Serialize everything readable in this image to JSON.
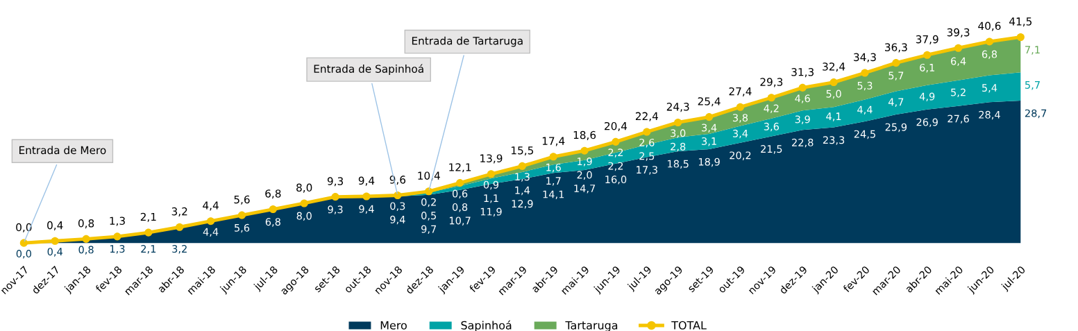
{
  "chart_data": {
    "type": "area",
    "stacked": true,
    "legend": "bottom",
    "categories": [
      "nov-17",
      "dez-17",
      "jan-18",
      "fev-18",
      "mar-18",
      "abr-18",
      "mai-18",
      "jun-18",
      "jul-18",
      "ago-18",
      "set-18",
      "out-18",
      "nov-18",
      "dez-18",
      "jan-19",
      "fev-19",
      "mar-19",
      "abr-19",
      "mai-19",
      "jun-19",
      "jul-19",
      "ago-19",
      "set-19",
      "out-19",
      "nov-19",
      "dez-19",
      "jan-20",
      "fev-20",
      "mar-20",
      "abr-20",
      "mai-20",
      "jun-20",
      "jul-20"
    ],
    "series": [
      {
        "name": "Mero",
        "color": "#003a5c",
        "values": [
          0.0,
          0.4,
          0.8,
          1.3,
          2.1,
          3.2,
          4.4,
          5.6,
          6.8,
          8.0,
          9.3,
          9.4,
          9.4,
          9.7,
          10.7,
          11.9,
          12.9,
          14.1,
          14.7,
          16.0,
          17.3,
          18.5,
          18.9,
          20.2,
          21.5,
          22.8,
          23.3,
          24.5,
          25.9,
          26.9,
          27.6,
          28.4,
          28.7
        ],
        "value_labels": [
          "0,0",
          "0,4",
          "0,8",
          "1,3",
          "2,1",
          "3,2",
          "4,4",
          "5,6",
          "6,8",
          "8,0",
          "9,3",
          "9,4",
          "9,4",
          "9,7",
          "10,7",
          "11,9",
          "12,9",
          "14,1",
          "14,7",
          "16,0",
          "17,3",
          "18,5",
          "18,9",
          "20,2",
          "21,5",
          "22,8",
          "23,3",
          "24,5",
          "25,9",
          "26,9",
          "27,6",
          "28,4",
          "28,7"
        ]
      },
      {
        "name": "Sapinhoá",
        "color": "#00a3a6",
        "values": [
          null,
          null,
          null,
          null,
          null,
          null,
          null,
          null,
          null,
          null,
          null,
          null,
          0.3,
          0.5,
          0.8,
          1.1,
          1.4,
          1.7,
          2.0,
          2.2,
          2.5,
          2.8,
          3.1,
          3.4,
          3.6,
          3.9,
          4.1,
          4.4,
          4.7,
          4.9,
          5.2,
          5.4,
          5.7
        ],
        "value_labels": [
          null,
          null,
          null,
          null,
          null,
          null,
          null,
          null,
          null,
          null,
          null,
          null,
          "0,3",
          "0,5",
          "0,8",
          "1,1",
          "1,4",
          "1,7",
          "2,0",
          "2,2",
          "2,5",
          "2,8",
          "3,1",
          "3,4",
          "3,6",
          "3,9",
          "4,1",
          "4,4",
          "4,7",
          "4,9",
          "5,2",
          "5,4",
          "5,7"
        ]
      },
      {
        "name": "Tartaruga",
        "color": "#6aaa5a",
        "values": [
          null,
          null,
          null,
          null,
          null,
          null,
          null,
          null,
          null,
          null,
          null,
          null,
          null,
          0.2,
          0.6,
          0.9,
          1.3,
          1.6,
          1.9,
          2.2,
          2.6,
          3.0,
          3.4,
          3.8,
          4.2,
          4.6,
          5.0,
          5.3,
          5.7,
          6.1,
          6.4,
          6.8,
          7.1
        ],
        "value_labels": [
          null,
          null,
          null,
          null,
          null,
          null,
          null,
          null,
          null,
          null,
          null,
          null,
          null,
          "0,2",
          "0,6",
          "0,9",
          "1,3",
          "1,6",
          "1,9",
          "2,2",
          "2,6",
          "3,0",
          "3,4",
          "3,8",
          "4,2",
          "4,6",
          "5,0",
          "5,3",
          "5,7",
          "6,1",
          "6,4",
          "6,8",
          "7,1"
        ]
      },
      {
        "name": "TOTAL",
        "type": "line",
        "marker": "circle",
        "color": "#f5c400",
        "values": [
          0.0,
          0.4,
          0.8,
          1.3,
          2.1,
          3.2,
          4.4,
          5.6,
          6.8,
          8.0,
          9.3,
          9.4,
          9.6,
          10.4,
          12.1,
          13.9,
          15.5,
          17.4,
          18.6,
          20.4,
          22.4,
          24.3,
          25.4,
          27.4,
          29.3,
          31.3,
          32.4,
          34.3,
          36.3,
          37.9,
          39.3,
          40.6,
          41.5
        ],
        "value_labels": [
          "0,0",
          "0,4",
          "0,8",
          "1,3",
          "2,1",
          "3,2",
          "4,4",
          "5,6",
          "6,8",
          "8,0",
          "9,3",
          "9,4",
          "9,6",
          "10,4",
          "12,1",
          "13,9",
          "15,5",
          "17,4",
          "18,6",
          "20,4",
          "22,4",
          "24,3",
          "25,4",
          "27,4",
          "29,3",
          "31,3",
          "32,4",
          "34,3",
          "36,3",
          "37,9",
          "39,3",
          "40,6",
          "41,5"
        ]
      }
    ],
    "annotations": [
      {
        "text": "Entrada de Mero",
        "x": "nov-17",
        "y": 0.0
      },
      {
        "text": "Entrada de Sapinhoá",
        "x": "nov-18",
        "y": 9.6
      },
      {
        "text": "Entrada de Tartaruga",
        "x": "dez-18",
        "y": 10.4
      }
    ]
  }
}
